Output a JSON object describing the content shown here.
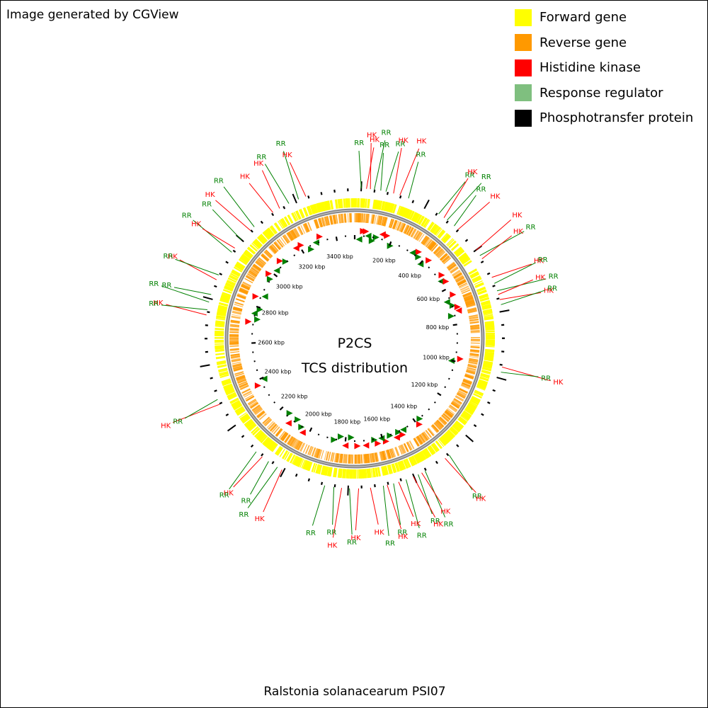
{
  "credit": "Image generated by CGView",
  "legend": [
    {
      "label": "Forward gene",
      "color": "#ffff00"
    },
    {
      "label": "Reverse gene",
      "color": "#ff9900"
    },
    {
      "label": "Histidine kinase",
      "color": "#ff0000"
    },
    {
      "label": "Response regulator",
      "color": "#7fbf7f"
    },
    {
      "label": "Phosphotransfer protein",
      "color": "#000000"
    }
  ],
  "center": {
    "line1": "P2CS",
    "line2": "TCS distribution"
  },
  "caption": "Ralstonia solanacearum PSI07",
  "genome_kbp": 3500,
  "scale_labels": [
    "200 kbp",
    "400 kbp",
    "600 kbp",
    "800 kbp",
    "1000 kbp",
    "1200 kbp",
    "1400 kbp",
    "1600 kbp",
    "1800 kbp",
    "2000 kbp",
    "2200 kbp",
    "2400 kbp",
    "2600 kbp",
    "2800 kbp",
    "3000 kbp",
    "3200 kbp",
    "3400 kbp"
  ],
  "colors": {
    "forward": "#ffff00",
    "reverse": "#ff9900",
    "backbone": "#888888",
    "hk": "#ff0000",
    "rr": "#008000",
    "label_hk": "#ff0000",
    "label_rr": "#008000"
  },
  "features": [
    {
      "type": "RR",
      "deg": 2.5
    },
    {
      "type": "HK",
      "deg": 4.5
    },
    {
      "type": "HK",
      "deg": 6
    },
    {
      "type": "RR",
      "deg": 7.5
    },
    {
      "type": "RR",
      "deg": 10
    },
    {
      "type": "RR",
      "deg": 12
    },
    {
      "type": "HK",
      "deg": 15
    },
    {
      "type": "HK",
      "deg": 17.5
    },
    {
      "type": "RR",
      "deg": 21
    },
    {
      "type": "RR",
      "deg": 34
    },
    {
      "type": "HK",
      "deg": 36.5
    },
    {
      "type": "RR",
      "deg": 38
    },
    {
      "type": "RR",
      "deg": 41.5
    },
    {
      "type": "HK",
      "deg": 43.5
    },
    {
      "type": "HK",
      "deg": 54
    },
    {
      "type": "RR",
      "deg": 56.5
    },
    {
      "type": "HK",
      "deg": 58
    },
    {
      "type": "HK",
      "deg": 66
    },
    {
      "type": "RR",
      "deg": 68.5
    },
    {
      "type": "RR",
      "deg": 71.5
    },
    {
      "type": "HK",
      "deg": 73
    },
    {
      "type": "HK",
      "deg": 75
    },
    {
      "type": "RR",
      "deg": 77
    },
    {
      "type": "HK",
      "deg": 101
    },
    {
      "type": "RR",
      "deg": 103
    },
    {
      "type": "RR",
      "deg": 141
    },
    {
      "type": "HK",
      "deg": 143
    },
    {
      "type": "RR",
      "deg": 152
    },
    {
      "type": "HK",
      "deg": 153.5
    },
    {
      "type": "RR",
      "deg": 155
    },
    {
      "type": "HK",
      "deg": 157
    },
    {
      "type": "RR",
      "deg": 160
    },
    {
      "type": "HK",
      "deg": 163
    },
    {
      "type": "RR",
      "deg": 165
    },
    {
      "type": "HK",
      "deg": 167.5
    },
    {
      "type": "RR",
      "deg": 169
    },
    {
      "type": "HK",
      "deg": 174
    },
    {
      "type": "HK",
      "deg": 178.5
    },
    {
      "type": "RR",
      "deg": 182
    },
    {
      "type": "HK",
      "deg": 185
    },
    {
      "type": "RR",
      "deg": 188
    },
    {
      "type": "RR",
      "deg": 191.5
    },
    {
      "type": "HK",
      "deg": 209
    },
    {
      "type": "RR",
      "deg": 211
    },
    {
      "type": "RR",
      "deg": 215
    },
    {
      "type": "HK",
      "deg": 218
    },
    {
      "type": "RR",
      "deg": 221
    },
    {
      "type": "HK",
      "deg": 244
    },
    {
      "type": "RR",
      "deg": 246
    },
    {
      "type": "HK",
      "deg": 279
    },
    {
      "type": "RR",
      "deg": 281
    },
    {
      "type": "RR",
      "deg": 284
    },
    {
      "type": "RR",
      "deg": 287
    },
    {
      "type": "HK",
      "deg": 293
    },
    {
      "type": "RR",
      "deg": 295
    },
    {
      "type": "RR",
      "deg": 305
    },
    {
      "type": "HK",
      "deg": 307
    },
    {
      "type": "RR",
      "deg": 311
    },
    {
      "type": "HK",
      "deg": 316
    },
    {
      "type": "RR",
      "deg": 318
    },
    {
      "type": "HK",
      "deg": 327
    },
    {
      "type": "HK",
      "deg": 330
    },
    {
      "type": "RR",
      "deg": 334
    },
    {
      "type": "RR",
      "deg": 338
    },
    {
      "type": "HK",
      "deg": 341
    }
  ],
  "label_rows": [
    {
      "text": "RR",
      "type": "RR"
    },
    {
      "text": "HK",
      "type": "HK"
    },
    {
      "text": "HK",
      "type": "HK"
    },
    {
      "text": "RR",
      "type": "RR"
    },
    {
      "text": "RR",
      "type": "RR"
    },
    {
      "text": "RR",
      "type": "RR"
    },
    {
      "text": "HK",
      "type": "HK"
    },
    {
      "text": "HK",
      "type": "HK"
    },
    {
      "text": "RR",
      "type": "RR"
    },
    {
      "text": "RR",
      "type": "RR"
    },
    {
      "text": "HK",
      "type": "HK"
    },
    {
      "text": "RR",
      "type": "RR"
    },
    {
      "text": "RR",
      "type": "RR"
    },
    {
      "text": "HK",
      "type": "HK"
    },
    {
      "text": "HK",
      "type": "HK"
    },
    {
      "text": "RR",
      "type": "RR"
    },
    {
      "text": "HK",
      "type": "HK"
    },
    {
      "text": "HK",
      "type": "HK"
    },
    {
      "text": "RR",
      "type": "RR"
    },
    {
      "text": "RR",
      "type": "RR"
    },
    {
      "text": "HK",
      "type": "HK"
    },
    {
      "text": "HK",
      "type": "HK"
    },
    {
      "text": "RR",
      "type": "RR"
    },
    {
      "text": "HK",
      "type": "HK"
    },
    {
      "text": "RR",
      "type": "RR"
    },
    {
      "text": "RR",
      "type": "RR"
    },
    {
      "text": "HK",
      "type": "HK"
    },
    {
      "text": "RR",
      "type": "RR"
    },
    {
      "text": "HK",
      "type": "HK"
    },
    {
      "text": "RR",
      "type": "RR"
    },
    {
      "text": "HK",
      "type": "HK"
    },
    {
      "text": "RR",
      "type": "RR"
    },
    {
      "text": "HK",
      "type": "HK"
    },
    {
      "text": "RR",
      "type": "RR"
    },
    {
      "text": "HK",
      "type": "HK"
    },
    {
      "text": "RR",
      "type": "RR"
    },
    {
      "text": "HK",
      "type": "HK"
    },
    {
      "text": "HK",
      "type": "HK"
    },
    {
      "text": "RR",
      "type": "RR"
    },
    {
      "text": "HK",
      "type": "HK"
    },
    {
      "text": "RR",
      "type": "RR"
    },
    {
      "text": "RR",
      "type": "RR"
    },
    {
      "text": "HK",
      "type": "HK"
    },
    {
      "text": "RR",
      "type": "RR"
    },
    {
      "text": "RR",
      "type": "RR"
    },
    {
      "text": "HK",
      "type": "HK"
    },
    {
      "text": "RR",
      "type": "RR"
    },
    {
      "text": "HK",
      "type": "HK"
    },
    {
      "text": "RR",
      "type": "RR"
    },
    {
      "text": "HK",
      "type": "HK"
    },
    {
      "text": "RR",
      "type": "RR"
    },
    {
      "text": "RR",
      "type": "RR"
    },
    {
      "text": "RR",
      "type": "RR"
    },
    {
      "text": "HK",
      "type": "HK"
    },
    {
      "text": "RR",
      "type": "RR"
    },
    {
      "text": "RR",
      "type": "RR"
    },
    {
      "text": "HK",
      "type": "HK"
    },
    {
      "text": "RR",
      "type": "RR"
    },
    {
      "text": "HK",
      "type": "HK"
    },
    {
      "text": "RR",
      "type": "RR"
    },
    {
      "text": "HK",
      "type": "HK"
    },
    {
      "text": "HK",
      "type": "HK"
    },
    {
      "text": "RR",
      "type": "RR"
    },
    {
      "text": "RR",
      "type": "RR"
    },
    {
      "text": "HK",
      "type": "HK"
    }
  ]
}
